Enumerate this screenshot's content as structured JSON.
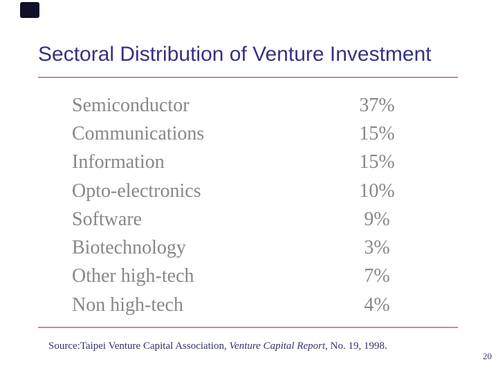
{
  "slide": {
    "title": "Sectoral Distribution of Venture Investment",
    "page_number": "20",
    "source": {
      "prefix": "Source:Taipei Venture Capital Association, ",
      "italic": "Venture Capital Report",
      "suffix": ", No. 19, 1998."
    },
    "table": {
      "rows": [
        {
          "label": "Semiconductor",
          "value": "37%"
        },
        {
          "label": "Communications",
          "value": "15%"
        },
        {
          "label": "Information",
          "value": "15%"
        },
        {
          "label": "Opto-electronics",
          "value": "10%"
        },
        {
          "label": "Software",
          "value": "9%"
        },
        {
          "label": "Biotechnology",
          "value": "3%"
        },
        {
          "label": "Other high-tech",
          "value": "7%"
        },
        {
          "label": "Non high-tech",
          "value": "4%"
        }
      ]
    },
    "colors": {
      "title_text": "#333384",
      "table_text": "#878787",
      "divider_line": "#c98b9b",
      "source_text": "#333366",
      "corner_accent": "#10102a",
      "background": "#ffffff"
    }
  },
  "chart_data": {
    "type": "table",
    "title": "Sectoral Distribution of Venture Investment",
    "categories": [
      "Semiconductor",
      "Communications",
      "Information",
      "Opto-electronics",
      "Software",
      "Biotechnology",
      "Other high-tech",
      "Non high-tech"
    ],
    "values": [
      37,
      15,
      15,
      10,
      9,
      3,
      7,
      4
    ],
    "unit": "%",
    "source": "Source:Taipei Venture Capital Association, Venture Capital Report, No. 19, 1998."
  }
}
